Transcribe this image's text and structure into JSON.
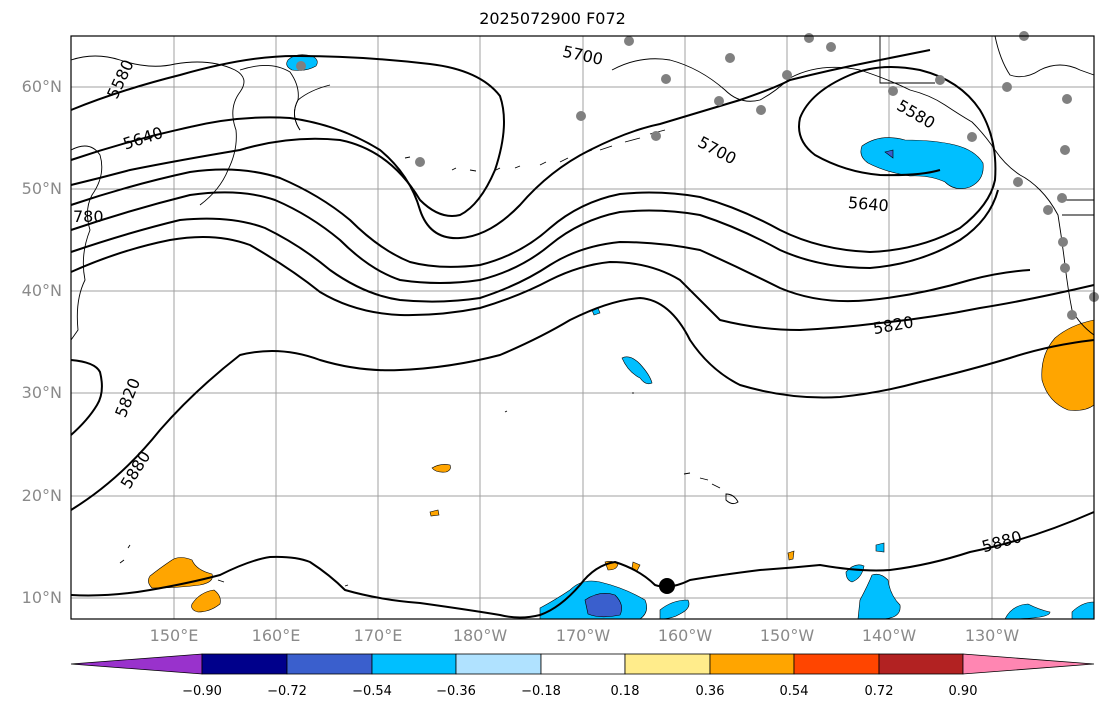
{
  "title": "2025072900 F072",
  "map": {
    "lat_labels": [
      "60°N",
      "50°N",
      "40°N",
      "30°N",
      "20°N",
      "10°N"
    ],
    "lon_labels": [
      "150°E",
      "160°E",
      "170°E",
      "180°W",
      "170°W",
      "160°W",
      "150°W",
      "140°W",
      "130°W"
    ],
    "contour_labels": [
      "5580",
      "5640",
      "5700",
      "5580",
      "5700",
      "5640",
      "5820",
      "5820",
      "5880",
      "5880",
      "780"
    ]
  },
  "colorbar": {
    "ticks": [
      "−0.90",
      "−0.72",
      "−0.54",
      "−0.36",
      "−0.18",
      "0.18",
      "0.36",
      "0.54",
      "0.72",
      "0.90"
    ],
    "colors": [
      "#9932cc",
      "#00008b",
      "#3a5fcd",
      "#00bfff",
      "#b0e2ff",
      "#ffffff",
      "#ffec8b",
      "#ffa500",
      "#ff4500",
      "#b22222",
      "#ff86b2"
    ]
  },
  "colors": {
    "land_line": "#000000",
    "grid": "#a0a0a0",
    "station_dot": "#808080"
  }
}
